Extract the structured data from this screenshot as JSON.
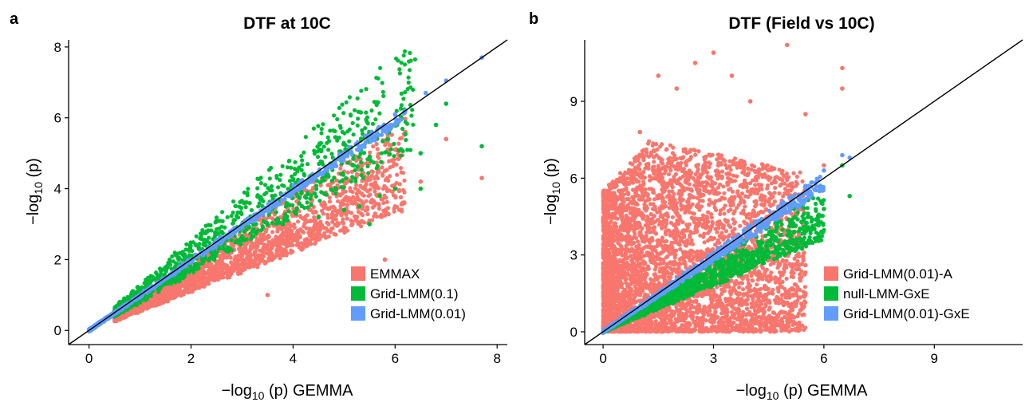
{
  "colors": {
    "red": "#F8766D",
    "green": "#00BA38",
    "blue": "#619CFF",
    "axis": "#000000"
  },
  "chart_data": [
    {
      "type": "scatter",
      "panel_label": "a",
      "title": "DTF at 10C",
      "xlabel": {
        "prefix": "−log",
        "sub": "10",
        "suffix": " (p) GEMMA"
      },
      "ylabel": {
        "prefix": "−log",
        "sub": "10",
        "suffix": " (p)"
      },
      "xlim": [
        -0.4,
        8.2
      ],
      "ylim": [
        -0.4,
        8.2
      ],
      "xticks": [
        0,
        2,
        4,
        6,
        8
      ],
      "yticks": [
        0,
        2,
        4,
        6,
        8
      ],
      "identity_line": true,
      "legend": "bottom-right",
      "series": [
        {
          "name": "EMMAX",
          "color": "#F8766D",
          "spread": "below",
          "points": [
            [
              0.5,
              0.4
            ],
            [
              1,
              0.8
            ],
            [
              1.5,
              1.2
            ],
            [
              2,
              1.5
            ],
            [
              2.5,
              1.8
            ],
            [
              3,
              2.1
            ],
            [
              3.5,
              2.4
            ],
            [
              4,
              2.7
            ],
            [
              4.5,
              2.8
            ],
            [
              5,
              2.9
            ],
            [
              5.5,
              3.1
            ],
            [
              5.8,
              4.5
            ],
            [
              6,
              3.5
            ],
            [
              6.2,
              5.6
            ],
            [
              6.5,
              4.2
            ],
            [
              7,
              5.4
            ],
            [
              7.7,
              4.3
            ],
            [
              3.5,
              1.0
            ],
            [
              4.5,
              2.9
            ],
            [
              5.8,
              2.0
            ]
          ],
          "band": {
            "xmin": 0.5,
            "xmax": 6.2,
            "slope_hi": 1.0,
            "slope_lo": 0.55,
            "n": 2400
          }
        },
        {
          "name": "Grid-LMM(0.1)",
          "color": "#00BA38",
          "spread": "above",
          "points": [
            [
              0.6,
              0.8
            ],
            [
              1.5,
              1.5
            ],
            [
              2.4,
              2.2
            ],
            [
              3,
              2.6
            ],
            [
              3.8,
              3.0
            ],
            [
              4.5,
              3.2
            ],
            [
              5,
              3.4
            ],
            [
              5.3,
              3.5
            ],
            [
              5.5,
              3.0
            ],
            [
              5.7,
              3.8
            ],
            [
              6,
              4.0
            ],
            [
              6.5,
              4.0
            ],
            [
              6.5,
              5.0
            ],
            [
              6.8,
              5.8
            ],
            [
              7,
              6.4
            ],
            [
              7.7,
              5.2
            ]
          ],
          "band": {
            "xmin": 0.5,
            "xmax": 6.4,
            "slope_hi": 1.3,
            "slope_lo": 0.8,
            "n": 1100
          }
        },
        {
          "name": "Grid-LMM(0.01)",
          "color": "#619CFF",
          "spread": "line",
          "points": [
            [
              0,
              0
            ],
            [
              1,
              1.0
            ],
            [
              2,
              2.0
            ],
            [
              3,
              3.0
            ],
            [
              4,
              4.0
            ],
            [
              5,
              5.0
            ],
            [
              5.5,
              5.5
            ],
            [
              6,
              6.1
            ],
            [
              6.2,
              6.2
            ],
            [
              6.6,
              6.7
            ],
            [
              7,
              7.05
            ],
            [
              7.7,
              7.7
            ]
          ],
          "band": {
            "xmin": 0,
            "xmax": 6.2,
            "slope_hi": 1.02,
            "slope_lo": 0.96,
            "n": 700
          }
        }
      ]
    },
    {
      "type": "scatter",
      "panel_label": "b",
      "title": "DTF (Field vs 10C)",
      "xlabel": {
        "prefix": "−log",
        "sub": "10",
        "suffix": " (p) GEMMA"
      },
      "ylabel": {
        "prefix": "−log",
        "sub": "10",
        "suffix": " (p)"
      },
      "xlim": [
        -0.5,
        11.4
      ],
      "ylim": [
        -0.5,
        11.4
      ],
      "xticks": [
        0,
        3,
        6,
        9
      ],
      "yticks": [
        0,
        3,
        6,
        9
      ],
      "identity_line": true,
      "legend": "bottom-right",
      "series": [
        {
          "name": "Grid-LMM(0.01)-A",
          "color": "#F8766D",
          "spread": "cloud",
          "points": [
            [
              0.2,
              5.6
            ],
            [
              1,
              7.8
            ],
            [
              1.5,
              10
            ],
            [
              2,
              9.5
            ],
            [
              2.5,
              10.5
            ],
            [
              3,
              10.9
            ],
            [
              3.5,
              10
            ],
            [
              4,
              9
            ],
            [
              5,
              11.2
            ],
            [
              5.5,
              8.5
            ],
            [
              6.5,
              10.3
            ],
            [
              6,
              6.5
            ],
            [
              6.5,
              9.5
            ],
            [
              5.5,
              1.5
            ],
            [
              5.5,
              2.6
            ],
            [
              4.5,
              1.5
            ]
          ],
          "band": {
            "xmin": 0,
            "xmax": 5.5,
            "slope_hi": 1.0,
            "slope_lo": 0.0,
            "n": 4500
          }
        },
        {
          "name": "null-LMM-GxE",
          "color": "#00BA38",
          "spread": "below",
          "points": [
            [
              1,
              0.6
            ],
            [
              2,
              1.3
            ],
            [
              3,
              2.0
            ],
            [
              4,
              2.7
            ],
            [
              5,
              3.5
            ],
            [
              5.5,
              4.1
            ],
            [
              6,
              4.8
            ],
            [
              6.7,
              5.3
            ],
            [
              6.5,
              6.5
            ]
          ],
          "band": {
            "xmin": 0,
            "xmax": 6.0,
            "slope_hi": 0.95,
            "slope_lo": 0.6,
            "n": 1500
          }
        },
        {
          "name": "Grid-LMM(0.01)-GxE",
          "color": "#619CFF",
          "spread": "line",
          "points": [
            [
              0,
              0
            ],
            [
              1,
              1
            ],
            [
              2,
              2.0
            ],
            [
              3,
              3.0
            ],
            [
              4,
              4.0
            ],
            [
              5,
              5.0
            ],
            [
              5.5,
              5.7
            ],
            [
              6,
              6.3
            ],
            [
              6.5,
              6.9
            ],
            [
              6.7,
              6.8
            ]
          ],
          "band": {
            "xmin": 0,
            "xmax": 6.0,
            "slope_hi": 1.05,
            "slope_lo": 0.92,
            "n": 800
          }
        }
      ]
    }
  ]
}
